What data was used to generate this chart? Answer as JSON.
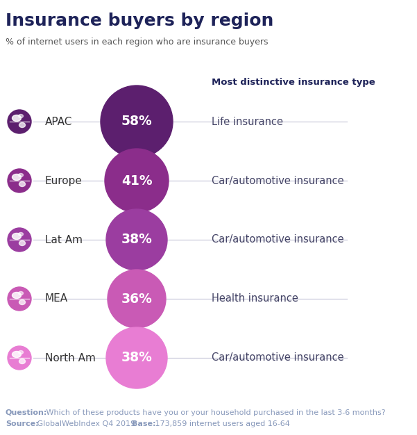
{
  "title": "Insurance buyers by region",
  "subtitle": "% of internet users in each region who are insurance buyers",
  "regions": [
    "APAC",
    "Europe",
    "Lat Am",
    "MEA",
    "North Am"
  ],
  "values": [
    58,
    41,
    38,
    36,
    38
  ],
  "labels": [
    "58%",
    "41%",
    "38%",
    "36%",
    "38%"
  ],
  "insurance_types": [
    "Life insurance",
    "Car/automotive insurance",
    "Car/automotive insurance",
    "Health insurance",
    "Car/automotive insurance"
  ],
  "circle_colors": [
    "#5c1f6e",
    "#8b2d8b",
    "#9b3da0",
    "#c95ab5",
    "#e87dd3"
  ],
  "column_header": "Most distinctive insurance type",
  "footnote_q_bold": "Question:",
  "footnote_q_text": " Which of these products have you or your household purchased in the last 3-6 months?",
  "footnote_s_bold": "Source:",
  "footnote_s_text": " GlobalWebIndex Q4 2019 ",
  "footnote_b_bold": "Base:",
  "footnote_b_text": " 173,859 internet users aged 16-64",
  "title_color": "#1e2359",
  "subtitle_color": "#555555",
  "footnote_color": "#8899bb",
  "header_color": "#1e2359",
  "region_text_color": "#333333",
  "insurance_text_color": "#444466",
  "bg_color": "#ffffff",
  "circle_text_color": "#ffffff",
  "line_color": "#ccccdd",
  "globe_fill": "#7b2f82",
  "globe_colors": [
    "#7b2f82",
    "#8b3d8b",
    "#9b4d9b",
    "#c96ab5",
    "#e87dd3"
  ]
}
